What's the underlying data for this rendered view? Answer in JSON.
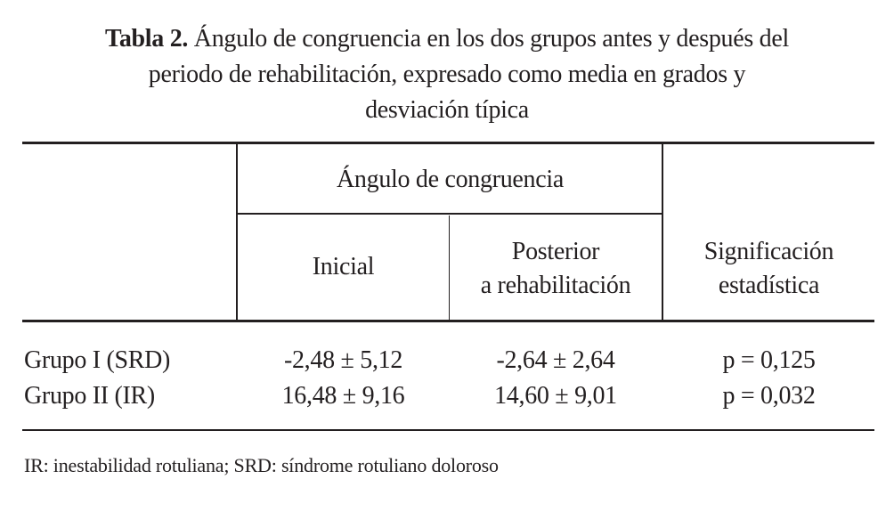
{
  "caption": {
    "label": "Tabla 2.",
    "line1": " Ángulo de congruencia en los dos grupos antes y después del",
    "line2": "periodo de rehabilitación, expresado como media en grados y",
    "line3": "desviación típica"
  },
  "table": {
    "group_header": "Ángulo de congruencia",
    "columns": [
      "Inicial",
      "Posterior",
      "a rehabilitación",
      "Significación",
      "estadística"
    ],
    "rows": [
      {
        "label": "Grupo I (SRD)",
        "inicial": "-2,48 ± 5,12",
        "posterior": "-2,64 ± 2,64",
        "p": "p = 0,125"
      },
      {
        "label": "Grupo II (IR)",
        "inicial": "16,48 ± 9,16",
        "posterior": "14,60 ± 9,01",
        "p": "p = 0,032"
      }
    ]
  },
  "footnote": "IR: inestabilidad rotuliana; SRD: síndrome rotuliano doloroso"
}
